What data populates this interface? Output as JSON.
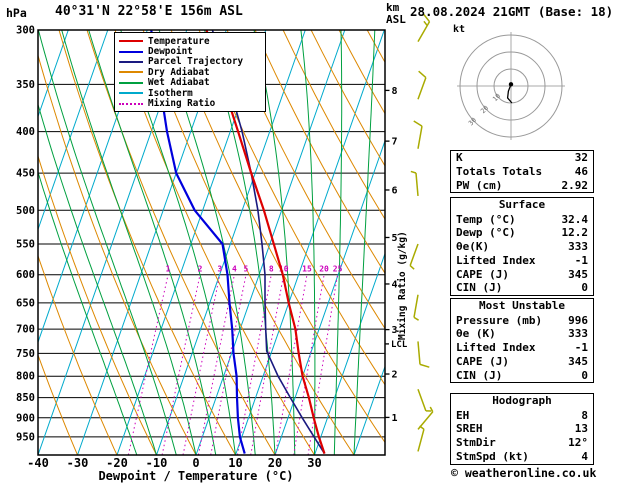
{
  "header": {
    "pressure_unit": "hPa",
    "station_title": "40°31'N 22°58'E 156m ASL",
    "datetime_title": "28.08.2024 21GMT (Base: 18)",
    "altitude_unit_line1": "km",
    "altitude_unit_line2": "ASL"
  },
  "legend": [
    {
      "label": "Temperature",
      "color": "#dd0000",
      "style": "solid"
    },
    {
      "label": "Dewpoint",
      "color": "#0000dd",
      "style": "solid"
    },
    {
      "label": "Parcel Trajectory",
      "color": "#1a1a80",
      "style": "solid"
    },
    {
      "label": "Dry Adiabat",
      "color": "#dd8800",
      "style": "solid"
    },
    {
      "label": "Wet Adiabat",
      "color": "#00a040",
      "style": "solid"
    },
    {
      "label": "Isotherm",
      "color": "#00aacc",
      "style": "solid"
    },
    {
      "label": "Mixing Ratio",
      "color": "#cc00bb",
      "style": "dotted"
    }
  ],
  "axes": {
    "pressure_ticks": [
      300,
      350,
      400,
      450,
      500,
      550,
      600,
      650,
      700,
      750,
      800,
      850,
      900,
      950
    ],
    "temp_ticks": [
      -40,
      -30,
      -20,
      -10,
      0,
      10,
      20,
      30
    ],
    "x_axis_label": "Dewpoint / Temperature (°C)",
    "km_ticks": [
      1,
      2,
      3,
      4,
      5,
      6,
      7,
      8
    ],
    "mixing_ratio_axis_label": "Mixing Ratio (g/kg)",
    "mixing_ratio_values": [
      1,
      2,
      3,
      4,
      5,
      8,
      10,
      15,
      20,
      25
    ],
    "lcl_label": "LCL"
  },
  "chart_styles": {
    "isobar": "#000000",
    "isotherm": "#00aacc",
    "dry_adiabat": "#dd8800",
    "wet_adiabat": "#00a040",
    "mixing_ratio": "#cc00bb",
    "barb": "#a9ab00"
  },
  "chart_data": {
    "type": "line",
    "variant": "skew-T log-P sounding",
    "title": "40°31'N 22°58'E 156m ASL  28.08.2024 21GMT (Base: 18)",
    "xlabel": "Dewpoint / Temperature (°C)",
    "ylabel": "hPa",
    "pressure_range_hpa": [
      1000,
      300
    ],
    "temperature_axis_c": [
      -40,
      30
    ],
    "series": [
      {
        "name": "Temperature",
        "color": "#dd0000",
        "width": 2.2,
        "points_p_t": [
          [
            996,
            32.4
          ],
          [
            950,
            29.5
          ],
          [
            900,
            26.5
          ],
          [
            850,
            23.5
          ],
          [
            800,
            20
          ],
          [
            750,
            17
          ],
          [
            700,
            14
          ],
          [
            650,
            10
          ],
          [
            600,
            6
          ],
          [
            550,
            1
          ],
          [
            500,
            -4.5
          ],
          [
            450,
            -11
          ],
          [
            400,
            -18
          ],
          [
            350,
            -26
          ],
          [
            300,
            -35
          ]
        ]
      },
      {
        "name": "Dewpoint",
        "color": "#0000dd",
        "width": 2.2,
        "points_p_t": [
          [
            996,
            12.2
          ],
          [
            950,
            9.5
          ],
          [
            900,
            7.3
          ],
          [
            850,
            5.3
          ],
          [
            800,
            3.3
          ],
          [
            750,
            0.5
          ],
          [
            700,
            -2
          ],
          [
            650,
            -5
          ],
          [
            600,
            -8
          ],
          [
            550,
            -12
          ],
          [
            500,
            -22
          ],
          [
            450,
            -30
          ],
          [
            400,
            -36
          ],
          [
            350,
            -42
          ],
          [
            300,
            -49
          ]
        ]
      },
      {
        "name": "Parcel Trajectory",
        "color": "#1a1a80",
        "width": 1.6,
        "points_p_t": [
          [
            996,
            32.4
          ],
          [
            950,
            28.3
          ],
          [
            900,
            23.6
          ],
          [
            850,
            18.8
          ],
          [
            800,
            13.8
          ],
          [
            745,
            8.7
          ],
          [
            700,
            6.5
          ],
          [
            650,
            4
          ],
          [
            600,
            1.5
          ],
          [
            550,
            -2
          ],
          [
            500,
            -6
          ],
          [
            450,
            -11
          ],
          [
            400,
            -17
          ],
          [
            350,
            -24.5
          ],
          [
            300,
            -33.5
          ]
        ]
      }
    ],
    "lcl_pressure_hpa": 730,
    "wind_barbs": [
      {
        "pressure": 310,
        "speed_kt": 15,
        "dir_deg": 30
      },
      {
        "pressure": 365,
        "speed_kt": 10,
        "dir_deg": 20
      },
      {
        "pressure": 420,
        "speed_kt": 10,
        "dir_deg": 10
      },
      {
        "pressure": 480,
        "speed_kt": 5,
        "dir_deg": 355
      },
      {
        "pressure": 550,
        "speed_kt": 5,
        "dir_deg": 200
      },
      {
        "pressure": 635,
        "speed_kt": 5,
        "dir_deg": 190
      },
      {
        "pressure": 725,
        "speed_kt": 10,
        "dir_deg": 175
      },
      {
        "pressure": 830,
        "speed_kt": 5,
        "dir_deg": 160
      },
      {
        "pressure": 930,
        "speed_kt": 5,
        "dir_deg": 40
      },
      {
        "pressure": 990,
        "speed_kt": 4,
        "dir_deg": 15
      }
    ]
  },
  "hodograph": {
    "unit_label": "kt",
    "ring_interval_kt": 10,
    "ring_labels": [
      "10",
      "20",
      "30"
    ],
    "trace_kt": [
      [
        0,
        -1
      ],
      [
        -1.5,
        3
      ],
      [
        -2,
        7
      ],
      [
        0.5,
        10
      ]
    ],
    "origin_dot_kt": [
      0,
      -1
    ]
  },
  "tables": {
    "summary": {
      "rows": [
        [
          "K",
          "32"
        ],
        [
          "Totals Totals",
          "46"
        ],
        [
          "PW (cm)",
          "2.92"
        ]
      ]
    },
    "surface": {
      "title": "Surface",
      "rows": [
        [
          "Temp (°C)",
          "32.4"
        ],
        [
          "Dewp (°C)",
          "12.2"
        ],
        [
          "θe(K)",
          "333"
        ],
        [
          "Lifted Index",
          "-1"
        ],
        [
          "CAPE (J)",
          "345"
        ],
        [
          "CIN (J)",
          "0"
        ]
      ]
    },
    "most_unstable": {
      "title": "Most Unstable",
      "rows": [
        [
          "Pressure (mb)",
          "996"
        ],
        [
          "θe (K)",
          "333"
        ],
        [
          "Lifted Index",
          "-1"
        ],
        [
          "CAPE (J)",
          "345"
        ],
        [
          "CIN (J)",
          "0"
        ]
      ]
    },
    "hodograph": {
      "title": "Hodograph",
      "rows": [
        [
          "EH",
          "8"
        ],
        [
          "SREH",
          "13"
        ],
        [
          "StmDir",
          "12°"
        ],
        [
          "StmSpd (kt)",
          "4"
        ]
      ]
    }
  },
  "footer": {
    "copyright": "© weatheronline.co.uk"
  }
}
